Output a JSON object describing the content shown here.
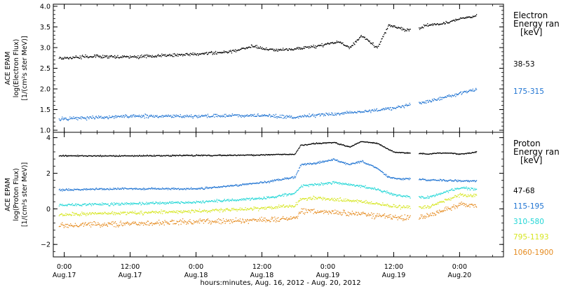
{
  "chart_data": [
    {
      "type": "scatter",
      "panel": "electron",
      "ylabel_lines": [
        "ACE EPAM",
        "log(Electron Flux)",
        "[1/(cm²s ster MeV)]"
      ],
      "ylim": [
        0.95,
        4.05
      ],
      "yticks": [
        1.0,
        1.5,
        2.0,
        2.5,
        3.0,
        3.5,
        4.0
      ],
      "ytick_labels": [
        "1.0",
        "1.5",
        "2.0",
        "2.5",
        "3.0",
        "3.5",
        "4.0"
      ],
      "legend": {
        "title_lines": [
          "Electron",
          "Energy ran",
          "[keV]"
        ],
        "placement": "right"
      },
      "series": [
        {
          "name": "38-53",
          "color": "#000000",
          "x": [
            "2012-08-16 23:00",
            "2012-08-17 06:00",
            "2012-08-17 12:00",
            "2012-08-17 18:00",
            "2012-08-18 00:00",
            "2012-08-18 06:00",
            "2012-08-18 10:00",
            "2012-08-18 14:00",
            "2012-08-18 18:00",
            "2012-08-18 22:00",
            "2012-08-19 02:00",
            "2012-08-19 04:00",
            "2012-08-19 06:00",
            "2012-08-19 08:00",
            "2012-08-19 09:00",
            "2012-08-19 11:00",
            "2012-08-19 14:00",
            "2012-08-19 16:00",
            "2012-08-19 17:00",
            "2012-08-19 18:00",
            "2012-08-19 22:00",
            "2012-08-20 00:00",
            "2012-08-20 03:00"
          ],
          "y": [
            2.75,
            2.8,
            2.78,
            2.82,
            2.85,
            2.9,
            3.05,
            2.95,
            2.97,
            3.05,
            3.15,
            3.0,
            3.3,
            3.1,
            3.0,
            3.55,
            3.45,
            3.42,
            3.5,
            3.55,
            3.62,
            3.72,
            3.78
          ]
        },
        {
          "name": "175-315",
          "color": "#1e73d2",
          "x": [
            "2012-08-16 23:00",
            "2012-08-17 12:00",
            "2012-08-18 00:00",
            "2012-08-18 12:00",
            "2012-08-18 18:00",
            "2012-08-19 00:00",
            "2012-08-19 06:00",
            "2012-08-19 12:00",
            "2012-08-19 18:00",
            "2012-08-20 03:00"
          ],
          "y": [
            1.28,
            1.35,
            1.35,
            1.37,
            1.32,
            1.4,
            1.45,
            1.55,
            1.7,
            2.0
          ]
        }
      ]
    },
    {
      "type": "scatter",
      "panel": "proton",
      "ylabel_lines": [
        "ACE EPAM",
        "log(Proton Flux)",
        "[1/(cm²s ster MeV)]"
      ],
      "ylim": [
        -2.7,
        4.3
      ],
      "yticks": [
        -2,
        0,
        2,
        4
      ],
      "ytick_labels": [
        "−2",
        "0",
        "2",
        "4"
      ],
      "legend": {
        "title_lines": [
          "Proton",
          "Energy ran",
          "[keV]"
        ],
        "placement": "right"
      },
      "series": [
        {
          "name": "47-68",
          "color": "#000000",
          "x": [
            "2012-08-16 23:00",
            "2012-08-17 12:00",
            "2012-08-18 00:00",
            "2012-08-18 12:00",
            "2012-08-18 18:00",
            "2012-08-18 19:00",
            "2012-08-18 22:00",
            "2012-08-19 01:00",
            "2012-08-19 04:00",
            "2012-08-19 06:00",
            "2012-08-19 09:00",
            "2012-08-19 12:00",
            "2012-08-19 16:00",
            "2012-08-19 18:00",
            "2012-08-19 20:00",
            "2012-08-19 22:00",
            "2012-08-20 00:00",
            "2012-08-20 03:00"
          ],
          "y": [
            3.0,
            3.0,
            3.02,
            3.05,
            3.1,
            3.6,
            3.7,
            3.75,
            3.5,
            3.8,
            3.7,
            3.2,
            3.15,
            3.1,
            3.15,
            3.15,
            3.1,
            3.2
          ]
        },
        {
          "name": "115-195",
          "color": "#1e73d2",
          "x": [
            "2012-08-16 23:00",
            "2012-08-17 12:00",
            "2012-08-18 00:00",
            "2012-08-18 06:00",
            "2012-08-18 12:00",
            "2012-08-18 18:00",
            "2012-08-18 19:00",
            "2012-08-18 22:00",
            "2012-08-19 01:00",
            "2012-08-19 04:00",
            "2012-08-19 06:00",
            "2012-08-19 09:00",
            "2012-08-19 11:00",
            "2012-08-19 13:00",
            "2012-08-19 16:00",
            "2012-08-19 18:00",
            "2012-08-20 00:00",
            "2012-08-20 03:00"
          ],
          "y": [
            1.1,
            1.15,
            1.15,
            1.3,
            1.5,
            1.8,
            2.5,
            2.6,
            2.8,
            2.5,
            2.7,
            2.3,
            1.8,
            1.7,
            1.7,
            1.65,
            1.6,
            1.6
          ]
        },
        {
          "name": "310-580",
          "color": "#21d6d6",
          "x": [
            "2012-08-16 23:00",
            "2012-08-17 12:00",
            "2012-08-18 00:00",
            "2012-08-18 12:00",
            "2012-08-18 18:00",
            "2012-08-18 19:00",
            "2012-08-18 22:00",
            "2012-08-19 01:00",
            "2012-08-19 06:00",
            "2012-08-19 09:00",
            "2012-08-19 13:00",
            "2012-08-19 16:00",
            "2012-08-19 18:00",
            "2012-08-20 00:00",
            "2012-08-20 03:00"
          ],
          "y": [
            0.25,
            0.3,
            0.4,
            0.6,
            0.9,
            1.3,
            1.4,
            1.5,
            1.3,
            1.1,
            0.75,
            0.7,
            0.65,
            1.2,
            1.1
          ]
        },
        {
          "name": "795-1193",
          "color": "#d6e621",
          "x": [
            "2012-08-16 23:00",
            "2012-08-17 12:00",
            "2012-08-18 00:00",
            "2012-08-18 12:00",
            "2012-08-18 18:00",
            "2012-08-18 19:00",
            "2012-08-18 22:00",
            "2012-08-19 01:00",
            "2012-08-19 06:00",
            "2012-08-19 12:00",
            "2012-08-19 16:00",
            "2012-08-19 18:00",
            "2012-08-20 00:00",
            "2012-08-20 03:00"
          ],
          "y": [
            -0.3,
            -0.2,
            -0.1,
            0.05,
            0.2,
            0.6,
            0.65,
            0.55,
            0.45,
            0.15,
            0.1,
            0.1,
            0.8,
            0.75
          ]
        },
        {
          "name": "1060-1900",
          "color": "#e58a1e",
          "x": [
            "2012-08-16 23:00",
            "2012-08-17 12:00",
            "2012-08-18 00:00",
            "2012-08-18 12:00",
            "2012-08-18 18:00",
            "2012-08-18 19:00",
            "2012-08-18 22:00",
            "2012-08-19 01:00",
            "2012-08-19 06:00",
            "2012-08-19 12:00",
            "2012-08-19 16:00",
            "2012-08-19 18:00",
            "2012-08-20 00:00",
            "2012-08-20 03:00"
          ],
          "y": [
            -0.9,
            -0.8,
            -0.7,
            -0.6,
            -0.5,
            -0.1,
            -0.1,
            -0.2,
            -0.25,
            -0.45,
            -0.5,
            -0.4,
            0.3,
            0.2
          ]
        }
      ]
    }
  ],
  "x_axis": {
    "title": "hours:minutes, Aug. 16, 2012 - Aug. 20, 2012",
    "range": [
      "2012-08-16 22:00",
      "2012-08-20 08:00"
    ],
    "ticks": [
      {
        "at": "2012-08-17 00:00",
        "time": "0:00",
        "date": "Aug.17"
      },
      {
        "at": "2012-08-17 12:00",
        "time": "12:00",
        "date": "Aug.17"
      },
      {
        "at": "2012-08-18 00:00",
        "time": "0:00",
        "date": "Aug.18"
      },
      {
        "at": "2012-08-18 12:00",
        "time": "12:00",
        "date": "Aug.18"
      },
      {
        "at": "2012-08-19 00:00",
        "time": "0:00",
        "date": "Aug.19"
      },
      {
        "at": "2012-08-19 12:00",
        "time": "12:00",
        "date": "Aug.19"
      },
      {
        "at": "2012-08-20 00:00",
        "time": "0:00",
        "date": "Aug.20"
      }
    ]
  }
}
